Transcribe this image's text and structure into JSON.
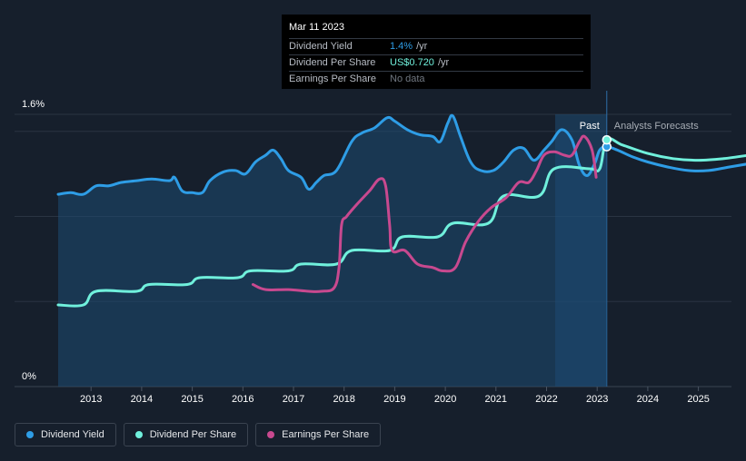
{
  "tooltip": {
    "date": "Mar 11 2023",
    "rows": [
      {
        "label": "Dividend Yield",
        "value": "1.4%",
        "unit": "/yr",
        "color": "#2e9de6"
      },
      {
        "label": "Dividend Per Share",
        "value": "US$0.720",
        "unit": "/yr",
        "color": "#70f0dc"
      },
      {
        "label": "Earnings Per Share",
        "value": "No data",
        "unit": "",
        "color": "#707780"
      }
    ]
  },
  "legend": [
    {
      "label": "Dividend Yield",
      "color": "#2e9de6"
    },
    {
      "label": "Dividend Per Share",
      "color": "#70f0dc"
    },
    {
      "label": "Earnings Per Share",
      "color": "#c8498f"
    }
  ],
  "chart_data": {
    "type": "line",
    "title": "",
    "xlabel": "",
    "ylabel": "",
    "y_ticks": [
      "0%",
      "1.6%"
    ],
    "ylim": [
      0,
      1.6
    ],
    "xlim": [
      2012.3,
      2026.0
    ],
    "x_ticks": [
      "2013",
      "2014",
      "2015",
      "2016",
      "2017",
      "2018",
      "2019",
      "2020",
      "2021",
      "2022",
      "2023",
      "2024",
      "2025"
    ],
    "regions": {
      "past_label": "Past",
      "forecast_label": "Analysts Forecasts",
      "highlight_start": 2022.17,
      "divider": 2023.19
    },
    "grid": true,
    "series": [
      {
        "name": "Dividend Yield",
        "color": "#2e9de6",
        "fill": true,
        "points": [
          [
            2012.35,
            1.13
          ],
          [
            2012.6,
            1.14
          ],
          [
            2012.85,
            1.13
          ],
          [
            2013.1,
            1.18
          ],
          [
            2013.35,
            1.18
          ],
          [
            2013.6,
            1.2
          ],
          [
            2013.9,
            1.21
          ],
          [
            2014.2,
            1.22
          ],
          [
            2014.55,
            1.21
          ],
          [
            2014.65,
            1.23
          ],
          [
            2014.8,
            1.15
          ],
          [
            2015.0,
            1.14
          ],
          [
            2015.2,
            1.14
          ],
          [
            2015.35,
            1.21
          ],
          [
            2015.6,
            1.26
          ],
          [
            2015.85,
            1.27
          ],
          [
            2016.05,
            1.25
          ],
          [
            2016.25,
            1.32
          ],
          [
            2016.45,
            1.36
          ],
          [
            2016.6,
            1.39
          ],
          [
            2016.75,
            1.34
          ],
          [
            2016.9,
            1.27
          ],
          [
            2017.15,
            1.23
          ],
          [
            2017.3,
            1.16
          ],
          [
            2017.45,
            1.2
          ],
          [
            2017.6,
            1.24
          ],
          [
            2017.85,
            1.27
          ],
          [
            2018.15,
            1.44
          ],
          [
            2018.35,
            1.49
          ],
          [
            2018.6,
            1.52
          ],
          [
            2018.85,
            1.58
          ],
          [
            2019.0,
            1.56
          ],
          [
            2019.25,
            1.51
          ],
          [
            2019.5,
            1.48
          ],
          [
            2019.75,
            1.47
          ],
          [
            2019.9,
            1.44
          ],
          [
            2020.05,
            1.55
          ],
          [
            2020.15,
            1.59
          ],
          [
            2020.3,
            1.47
          ],
          [
            2020.5,
            1.32
          ],
          [
            2020.7,
            1.27
          ],
          [
            2020.95,
            1.27
          ],
          [
            2021.15,
            1.32
          ],
          [
            2021.35,
            1.39
          ],
          [
            2021.55,
            1.4
          ],
          [
            2021.75,
            1.33
          ],
          [
            2021.95,
            1.39
          ],
          [
            2022.1,
            1.44
          ],
          [
            2022.3,
            1.51
          ],
          [
            2022.5,
            1.45
          ],
          [
            2022.65,
            1.3
          ],
          [
            2022.8,
            1.24
          ],
          [
            2022.95,
            1.31
          ],
          [
            2023.05,
            1.39
          ],
          [
            2023.19,
            1.41
          ],
          [
            2023.4,
            1.39
          ],
          [
            2023.7,
            1.35
          ],
          [
            2024.0,
            1.32
          ],
          [
            2024.4,
            1.29
          ],
          [
            2024.8,
            1.27
          ],
          [
            2025.2,
            1.27
          ],
          [
            2025.6,
            1.29
          ],
          [
            2026.0,
            1.31
          ]
        ]
      },
      {
        "name": "Dividend Per Share",
        "color": "#70f0dc",
        "fill": false,
        "points": [
          [
            2012.35,
            0.48
          ],
          [
            2012.85,
            0.48
          ],
          [
            2013.1,
            0.56
          ],
          [
            2013.9,
            0.56
          ],
          [
            2014.15,
            0.6
          ],
          [
            2014.9,
            0.6
          ],
          [
            2015.15,
            0.64
          ],
          [
            2015.9,
            0.64
          ],
          [
            2016.15,
            0.68
          ],
          [
            2016.9,
            0.68
          ],
          [
            2017.15,
            0.72
          ],
          [
            2017.85,
            0.72
          ],
          [
            2018.15,
            0.8
          ],
          [
            2018.9,
            0.8
          ],
          [
            2019.15,
            0.88
          ],
          [
            2019.85,
            0.88
          ],
          [
            2020.15,
            0.96
          ],
          [
            2020.85,
            0.96
          ],
          [
            2021.15,
            1.12
          ],
          [
            2021.85,
            1.12
          ],
          [
            2022.15,
            1.28
          ],
          [
            2022.85,
            1.28
          ],
          [
            2023.05,
            1.28
          ],
          [
            2023.19,
            1.45
          ],
          [
            2023.5,
            1.42
          ],
          [
            2024.0,
            1.37
          ],
          [
            2024.5,
            1.34
          ],
          [
            2025.0,
            1.33
          ],
          [
            2025.5,
            1.34
          ],
          [
            2026.0,
            1.36
          ]
        ]
      },
      {
        "name": "Earnings Per Share",
        "color": "#c8498f",
        "fill": false,
        "points": [
          [
            2016.2,
            0.6
          ],
          [
            2016.45,
            0.57
          ],
          [
            2016.9,
            0.57
          ],
          [
            2017.3,
            0.56
          ],
          [
            2017.55,
            0.56
          ],
          [
            2017.8,
            0.58
          ],
          [
            2017.9,
            0.7
          ],
          [
            2017.95,
            0.95
          ],
          [
            2018.05,
            1.0
          ],
          [
            2018.25,
            1.07
          ],
          [
            2018.5,
            1.15
          ],
          [
            2018.7,
            1.22
          ],
          [
            2018.82,
            1.18
          ],
          [
            2018.9,
            0.95
          ],
          [
            2018.95,
            0.8
          ],
          [
            2019.2,
            0.8
          ],
          [
            2019.45,
            0.72
          ],
          [
            2019.75,
            0.7
          ],
          [
            2019.95,
            0.68
          ],
          [
            2020.2,
            0.7
          ],
          [
            2020.4,
            0.85
          ],
          [
            2020.65,
            0.97
          ],
          [
            2020.9,
            1.05
          ],
          [
            2021.2,
            1.11
          ],
          [
            2021.45,
            1.2
          ],
          [
            2021.65,
            1.2
          ],
          [
            2021.8,
            1.27
          ],
          [
            2021.95,
            1.36
          ],
          [
            2022.15,
            1.38
          ],
          [
            2022.35,
            1.36
          ],
          [
            2022.5,
            1.36
          ],
          [
            2022.65,
            1.44
          ],
          [
            2022.75,
            1.47
          ],
          [
            2022.9,
            1.39
          ],
          [
            2022.98,
            1.23
          ]
        ]
      }
    ],
    "markers": [
      {
        "series": "Dividend Yield",
        "x": 2023.19,
        "y": 1.41
      },
      {
        "series": "Dividend Per Share",
        "x": 2023.19,
        "y": 1.45
      }
    ]
  }
}
